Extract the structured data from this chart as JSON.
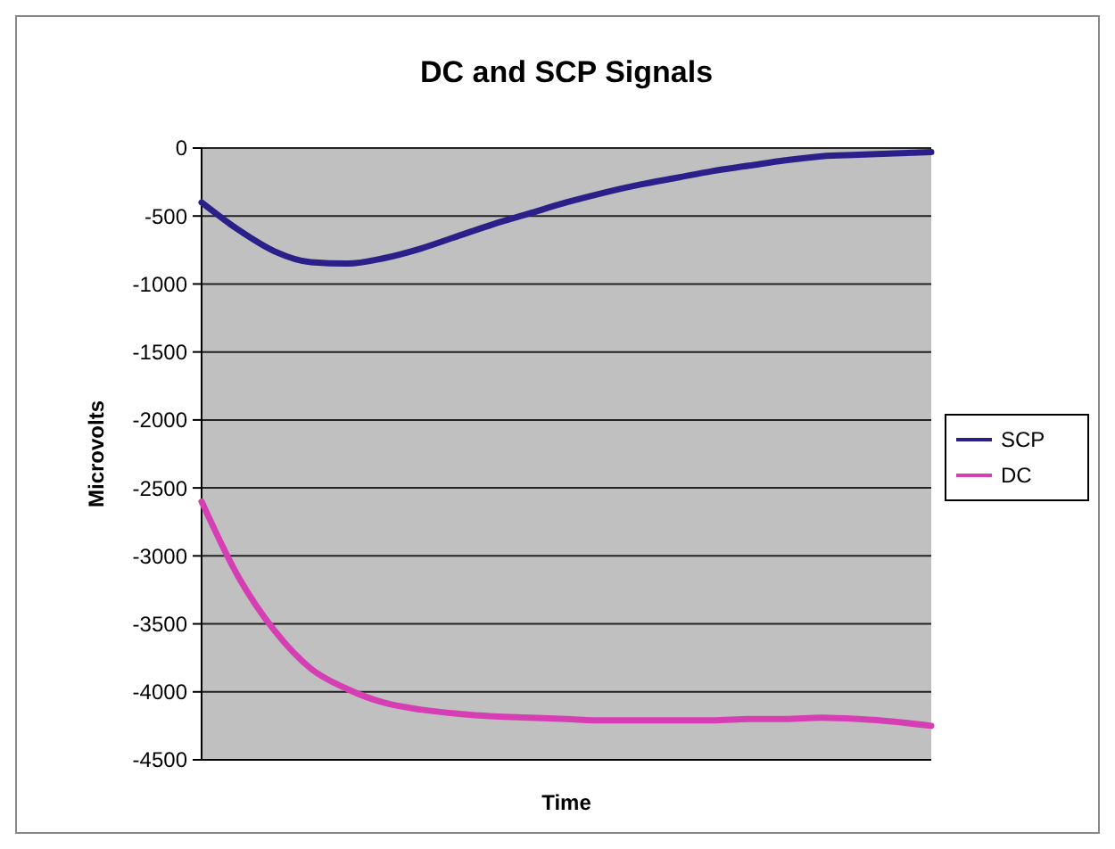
{
  "chart_data": {
    "type": "line",
    "title": "DC and SCP Signals",
    "xlabel": "Time",
    "ylabel": "Microvolts",
    "categories": [
      null,
      null,
      null,
      null,
      null,
      null,
      null,
      null,
      null,
      null,
      null,
      null,
      null,
      null,
      null,
      null,
      null,
      null,
      null,
      null,
      null
    ],
    "series": [
      {
        "name": "SCP",
        "color": "#2b1f8a",
        "values": [
          -400,
          -600,
          -760,
          -840,
          -850,
          -810,
          -740,
          -650,
          -560,
          -480,
          -400,
          -330,
          -270,
          -220,
          -170,
          -130,
          -90,
          -60,
          -50,
          -40,
          -30
        ]
      },
      {
        "name": "DC",
        "color": "#d63fb4",
        "values": [
          -2600,
          -3150,
          -3550,
          -3830,
          -3980,
          -4080,
          -4130,
          -4160,
          -4180,
          -4190,
          -4200,
          -4210,
          -4210,
          -4210,
          -4210,
          -4200,
          -4200,
          -4190,
          -4200,
          -4220,
          -4250
        ]
      }
    ],
    "ylim": [
      -4500,
      0
    ],
    "yticks": [
      0,
      -500,
      -1000,
      -1500,
      -2000,
      -2500,
      -3000,
      -3500,
      -4000,
      -4500
    ],
    "grid": "y",
    "legend": "right",
    "marker": "none",
    "line_style": "solid"
  }
}
